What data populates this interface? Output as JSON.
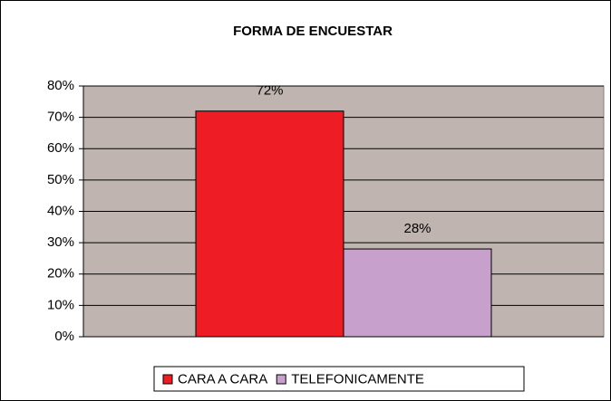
{
  "chart_data": {
    "type": "bar",
    "title": "FORMA DE ENCUESTAR",
    "series": [
      {
        "name": "CARA A CARA",
        "color": "#ee1c25",
        "values": [
          72
        ],
        "value_labels": [
          "72%"
        ]
      },
      {
        "name": "TELEFONICAMENTE",
        "color": "#c8a0cc",
        "values": [
          28
        ],
        "value_labels": [
          "28%"
        ]
      }
    ],
    "ylim": [
      0,
      80
    ],
    "yticks": [
      {
        "value": 0,
        "label": "0%"
      },
      {
        "value": 10,
        "label": "10%"
      },
      {
        "value": 20,
        "label": "20%"
      },
      {
        "value": 30,
        "label": "30%"
      },
      {
        "value": 40,
        "label": "40%"
      },
      {
        "value": 50,
        "label": "50%"
      },
      {
        "value": 60,
        "label": "60%"
      },
      {
        "value": 70,
        "label": "70%"
      },
      {
        "value": 80,
        "label": "80%"
      }
    ],
    "grid": true,
    "legend": "bottom",
    "plot_background": "#c0b4b0"
  }
}
